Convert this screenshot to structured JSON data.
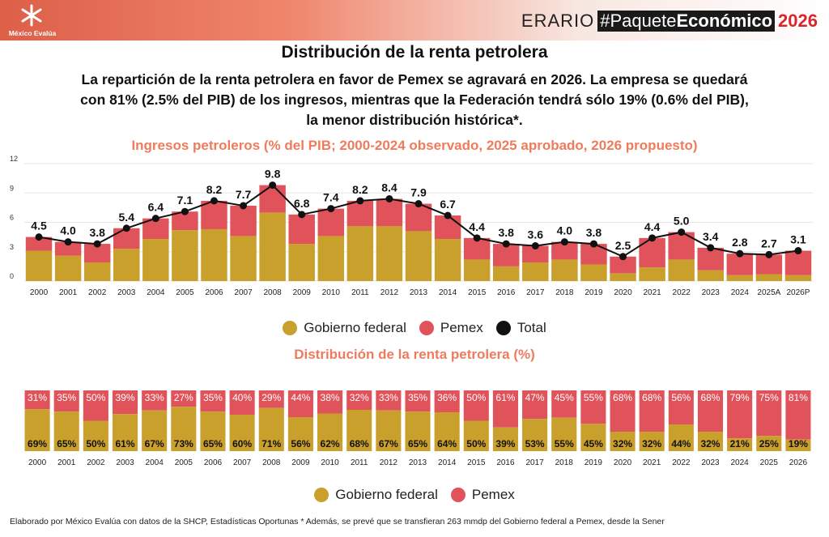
{
  "header": {
    "logo_text": "México Evalúa",
    "brand_prefix": "ERARIO",
    "brand_hashtag": "#Paquete",
    "brand_bold": "Económico",
    "brand_year": "2026"
  },
  "title": "Distribución de la renta petrolera",
  "subtitle": "La repartición de la renta petrolera en favor de Pemex se agravará en 2026. La empresa se quedará con 81% (2.5% del PIB) de los ingresos, mientras que la Federación tendrá sólo 19% (0.6% del PIB), la menor distribución histórica*.",
  "legend1": {
    "gobierno": "Gobierno federal",
    "pemex": "Pemex",
    "total": "Total"
  },
  "legend2": {
    "gobierno": "Gobierno federal",
    "pemex": "Pemex"
  },
  "footer": "Elaborado por México Evalúa con datos de la SHCP, Estadísticas Oportunas * Además, se prevé que se transfieran 263 mmdp del Gobierno federal a Pemex, desde la Sener",
  "colors": {
    "gobierno": "#c9a02c",
    "pemex": "#e0535a",
    "total": "#111111",
    "title_accent": "#f07b5c"
  },
  "chart_data": [
    {
      "type": "bar",
      "stacked": true,
      "title": "Ingresos petroleros (% del PIB; 2000-2024 observado, 2025 aprobado, 2026 propuesto)",
      "categories": [
        "2000",
        "2001",
        "2002",
        "2003",
        "2004",
        "2005",
        "2006",
        "2007",
        "2008",
        "2009",
        "2010",
        "2011",
        "2012",
        "2013",
        "2014",
        "2015",
        "2016",
        "2017",
        "2018",
        "2019",
        "2020",
        "2021",
        "2022",
        "2023",
        "2024",
        "2025A",
        "2026P"
      ],
      "series": [
        {
          "name": "Gobierno federal",
          "values": [
            3.1,
            2.6,
            1.9,
            3.3,
            4.3,
            5.2,
            5.3,
            4.6,
            7.0,
            3.8,
            4.6,
            5.6,
            5.6,
            5.1,
            4.3,
            2.2,
            1.5,
            1.9,
            2.2,
            1.7,
            0.8,
            1.4,
            2.2,
            1.1,
            0.6,
            0.7,
            0.6
          ]
        },
        {
          "name": "Pemex",
          "values": [
            1.4,
            1.4,
            1.9,
            2.1,
            2.1,
            1.9,
            2.9,
            3.1,
            2.8,
            3.0,
            2.8,
            2.6,
            2.8,
            2.8,
            2.4,
            2.2,
            2.3,
            1.7,
            1.8,
            2.1,
            1.7,
            3.0,
            2.8,
            2.3,
            2.2,
            2.0,
            2.5
          ]
        },
        {
          "name": "Total",
          "type": "line",
          "values": [
            4.5,
            4.0,
            3.8,
            5.4,
            6.4,
            7.1,
            8.2,
            7.7,
            9.8,
            6.8,
            7.4,
            8.2,
            8.4,
            7.9,
            6.7,
            4.4,
            3.8,
            3.6,
            4.0,
            3.8,
            2.5,
            4.4,
            5.0,
            3.4,
            2.8,
            2.7,
            3.1
          ]
        }
      ],
      "total_labels": [
        "4.5",
        "4.0",
        "3.8",
        "5.4",
        "6.4",
        "7.1",
        "8.2",
        "7.7",
        "9.8",
        "6.8",
        "7.4",
        "8.2",
        "8.4",
        "7.9",
        "6.7",
        "4.4",
        "3.8",
        "3.6",
        "4.0",
        "3.8",
        "2.5",
        "4.4",
        "5.0",
        "3.4",
        "2.8",
        "2.7",
        "3.1"
      ],
      "y_ticks": [
        "0",
        "3",
        "6",
        "9",
        "12"
      ],
      "ylim": [
        0,
        12
      ],
      "grid": true,
      "legend_position": "bottom"
    },
    {
      "type": "bar",
      "stacked": true,
      "percent": true,
      "title": "Distribución de la renta petrolera (%)",
      "categories": [
        "2000",
        "2001",
        "2002",
        "2003",
        "2004",
        "2005",
        "2006",
        "2007",
        "2008",
        "2009",
        "2010",
        "2011",
        "2012",
        "2013",
        "2014",
        "2015",
        "2016",
        "2017",
        "2018",
        "2019",
        "2020",
        "2021",
        "2022",
        "2023",
        "2024",
        "2025",
        "2026"
      ],
      "series": [
        {
          "name": "Gobierno federal",
          "values": [
            69,
            65,
            50,
            61,
            67,
            73,
            65,
            60,
            71,
            56,
            62,
            68,
            67,
            65,
            64,
            50,
            39,
            53,
            55,
            45,
            32,
            32,
            44,
            32,
            21,
            25,
            19
          ]
        },
        {
          "name": "Pemex",
          "values": [
            31,
            35,
            50,
            39,
            33,
            27,
            35,
            40,
            29,
            44,
            38,
            32,
            33,
            35,
            36,
            50,
            61,
            47,
            45,
            55,
            68,
            68,
            56,
            68,
            79,
            75,
            81
          ]
        }
      ],
      "gobierno_labels": [
        "69%",
        "65%",
        "50%",
        "61%",
        "67%",
        "73%",
        "65%",
        "60%",
        "71%",
        "56%",
        "62%",
        "68%",
        "67%",
        "65%",
        "64%",
        "50%",
        "39%",
        "53%",
        "55%",
        "45%",
        "32%",
        "32%",
        "44%",
        "32%",
        "21%",
        "25%",
        "19%"
      ],
      "pemex_labels": [
        "31%",
        "35%",
        "50%",
        "39%",
        "33%",
        "27%",
        "35%",
        "40%",
        "29%",
        "44%",
        "38%",
        "32%",
        "33%",
        "35%",
        "36%",
        "50%",
        "61%",
        "47%",
        "45%",
        "55%",
        "68%",
        "68%",
        "56%",
        "68%",
        "79%",
        "75%",
        "81%"
      ],
      "ylim": [
        0,
        100
      ],
      "legend_position": "bottom"
    }
  ]
}
